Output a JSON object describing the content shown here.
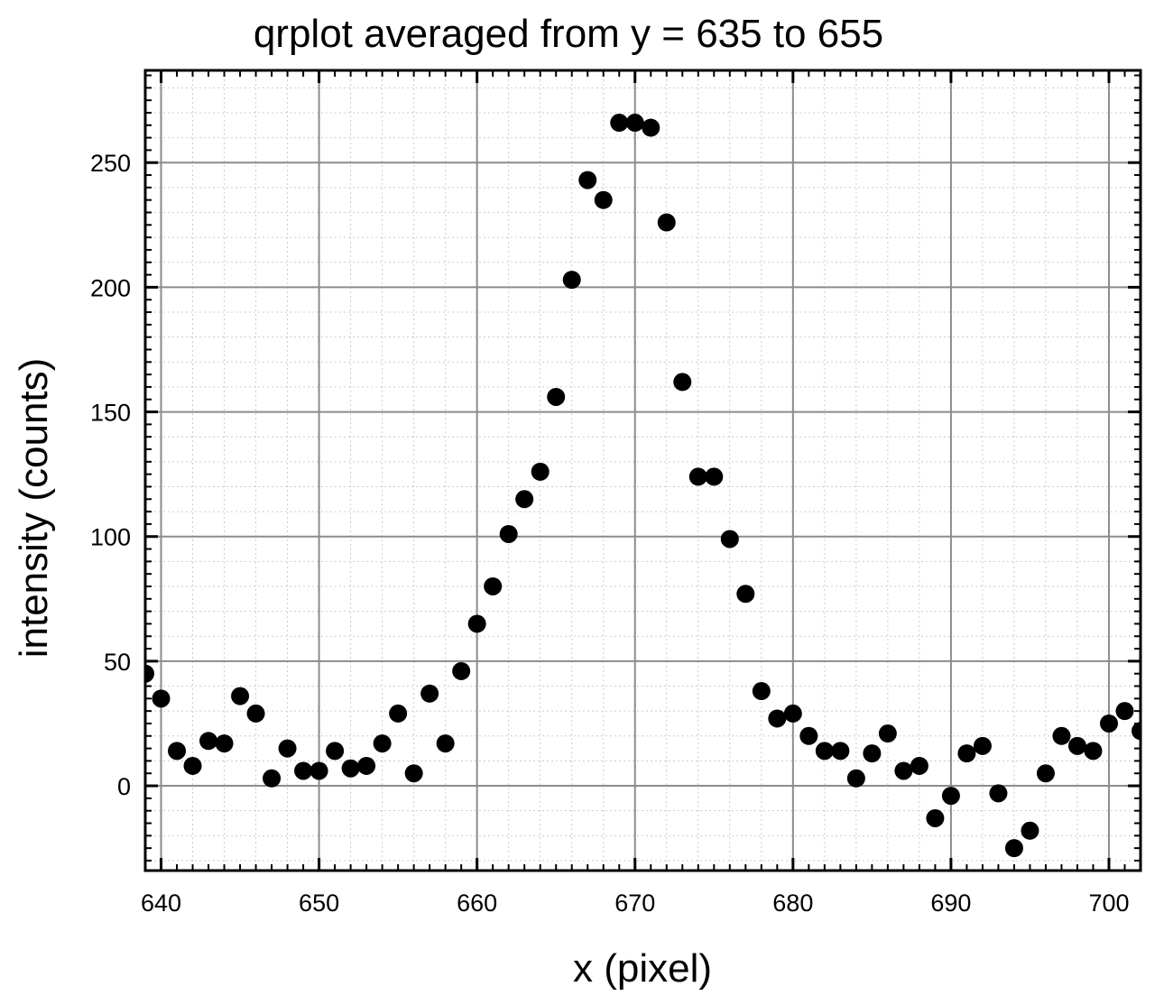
{
  "chart_data": {
    "type": "scatter",
    "title": "qrplot averaged from y = 635 to 655",
    "xlabel": "x (pixel)",
    "ylabel": "intensity (counts)",
    "xlim": [
      639,
      702
    ],
    "ylim": [
      -34,
      287
    ],
    "x_ticks": [
      640,
      650,
      660,
      670,
      680,
      690,
      700
    ],
    "y_ticks": [
      0,
      50,
      100,
      150,
      200,
      250
    ],
    "grid": true,
    "marker_color": "#000000",
    "series": [
      {
        "x": [
          639,
          640,
          641,
          642,
          643,
          644,
          645,
          646,
          647,
          648,
          649,
          650,
          651,
          652,
          653,
          654,
          655,
          656,
          657,
          658,
          659,
          660,
          661,
          662,
          663,
          664,
          665,
          666,
          667,
          668,
          669,
          670,
          671,
          672,
          673,
          674,
          675,
          676,
          677,
          678,
          679,
          680,
          681,
          682,
          683,
          684,
          685,
          686,
          687,
          688,
          689,
          690,
          691,
          692,
          693,
          694,
          695,
          696,
          697,
          698,
          699,
          700,
          701,
          702
        ],
        "y": [
          45,
          35,
          14,
          8,
          18,
          17,
          36,
          29,
          3,
          15,
          6,
          6,
          14,
          7,
          8,
          17,
          29,
          5,
          37,
          17,
          46,
          65,
          80,
          101,
          115,
          126,
          156,
          203,
          243,
          235,
          266,
          266,
          264,
          226,
          162,
          124,
          124,
          99,
          77,
          38,
          27,
          29,
          20,
          14,
          14,
          3,
          13,
          21,
          6,
          8,
          -13,
          -4,
          13,
          16,
          -3,
          -25,
          -18,
          5,
          20,
          16,
          14,
          25,
          30,
          22
        ]
      }
    ]
  }
}
